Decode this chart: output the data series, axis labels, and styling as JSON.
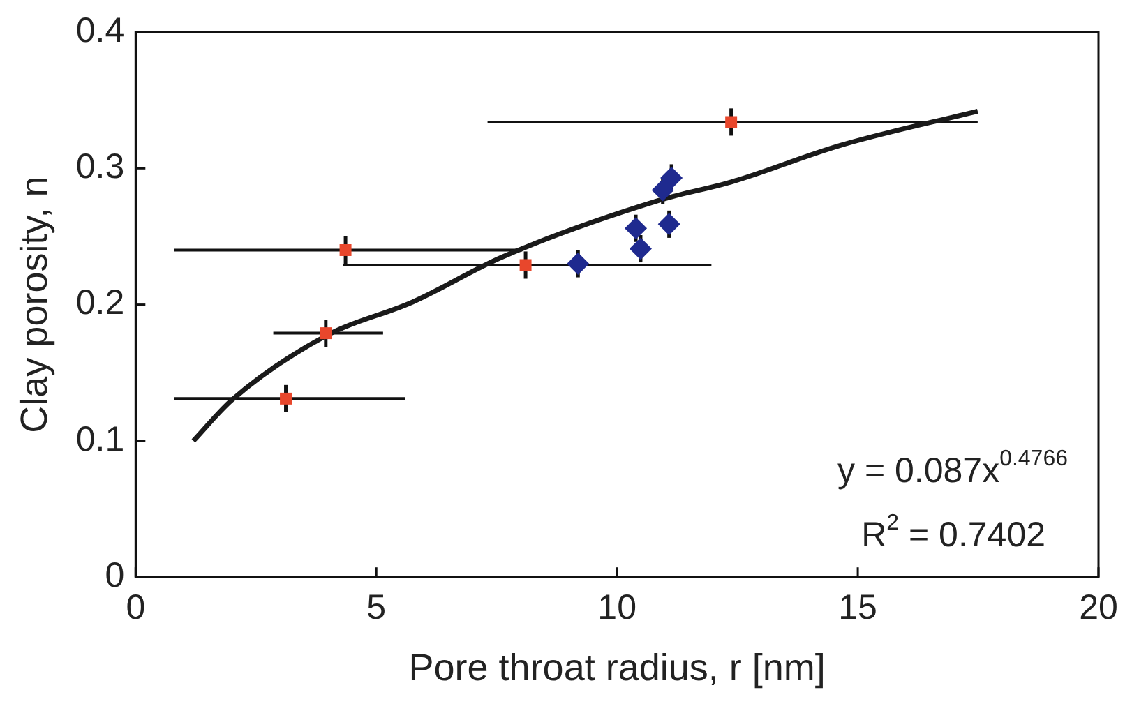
{
  "chart_data": {
    "type": "scatter",
    "xlabel": "Pore throat radius, r [nm]",
    "ylabel": "Clay porosity, n",
    "xlim": [
      0,
      20
    ],
    "xticks": [
      0,
      5,
      10,
      15,
      20
    ],
    "ylim": [
      0,
      0.4
    ],
    "yticks": [
      0,
      0.1,
      0.2,
      0.3,
      0.4
    ],
    "grid": false,
    "legend": false,
    "series": [
      {
        "type": "line",
        "color": "#1a1a1a",
        "marker": "none",
        "line_style": "solid",
        "x": [
          1.2,
          2.0,
          3.95,
          5.76,
          7.62,
          10.92,
          12.37,
          14.65,
          17.49
        ],
        "values": [
          0.1,
          0.13,
          0.177,
          0.202,
          0.235,
          0.277,
          0.29,
          0.317,
          0.342
        ]
      },
      {
        "color": "#e8472c",
        "marker": "square",
        "x": [
          3.12,
          3.95,
          4.36,
          8.1,
          12.37
        ],
        "values": [
          0.131,
          0.179,
          0.24,
          0.229,
          0.334
        ],
        "errors": [
          0.01,
          0.01,
          0.01,
          0.01,
          0.01
        ],
        "xerrors": [
          [
            0.8,
            5.6
          ],
          [
            2.86,
            5.14
          ],
          [
            0.8,
            8.03
          ],
          [
            4.31,
            11.96
          ],
          [
            7.31,
            17.49
          ]
        ]
      },
      {
        "color": "#1f2a8f",
        "marker": "diamond",
        "x": [
          9.19,
          10.49,
          10.39,
          11.08,
          10.95,
          11.13
        ],
        "values": [
          0.23,
          0.241,
          0.256,
          0.259,
          0.284,
          0.293
        ],
        "errors": [
          0.01,
          0.01,
          0.01,
          0.01,
          0.01,
          0.01
        ]
      }
    ],
    "annotations": [
      "y = 0.087x$^{0.4766}$",
      "R$^{2}$ = 0.7402"
    ]
  }
}
